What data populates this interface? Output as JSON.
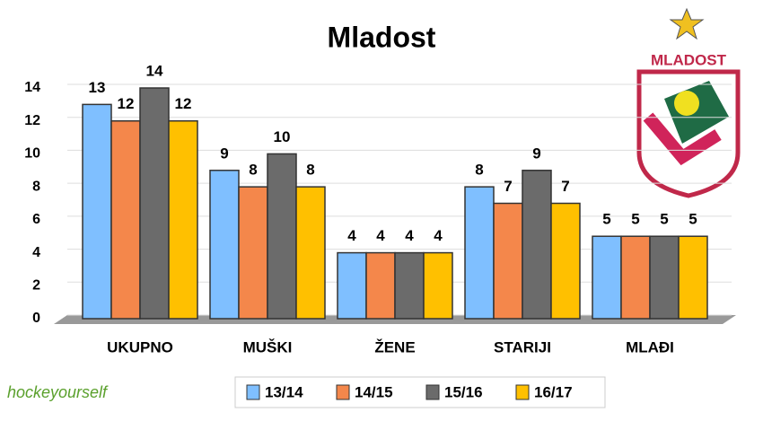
{
  "chart_data": {
    "type": "bar",
    "title": "Mladost",
    "categories": [
      "UKUPNO",
      "MUŠKI",
      "ŽENE",
      "STARIJI",
      "MLAĐI"
    ],
    "series": [
      {
        "name": "13/14",
        "color": "#7fbfff",
        "values": [
          13,
          9,
          4,
          8,
          5
        ]
      },
      {
        "name": "14/15",
        "color": "#f4874b",
        "values": [
          12,
          8,
          4,
          7,
          5
        ]
      },
      {
        "name": "15/16",
        "color": "#6b6b6b",
        "values": [
          14,
          10,
          4,
          9,
          5
        ]
      },
      {
        "name": "16/17",
        "color": "#ffc000",
        "values": [
          12,
          8,
          4,
          7,
          5
        ]
      }
    ],
    "ylim": [
      0,
      14
    ],
    "yticks": [
      0,
      2,
      4,
      6,
      8,
      10,
      12,
      14
    ],
    "grid": true,
    "legend": "bottom"
  },
  "logo_text": "MLADOST",
  "watermark": "hockeyourself"
}
